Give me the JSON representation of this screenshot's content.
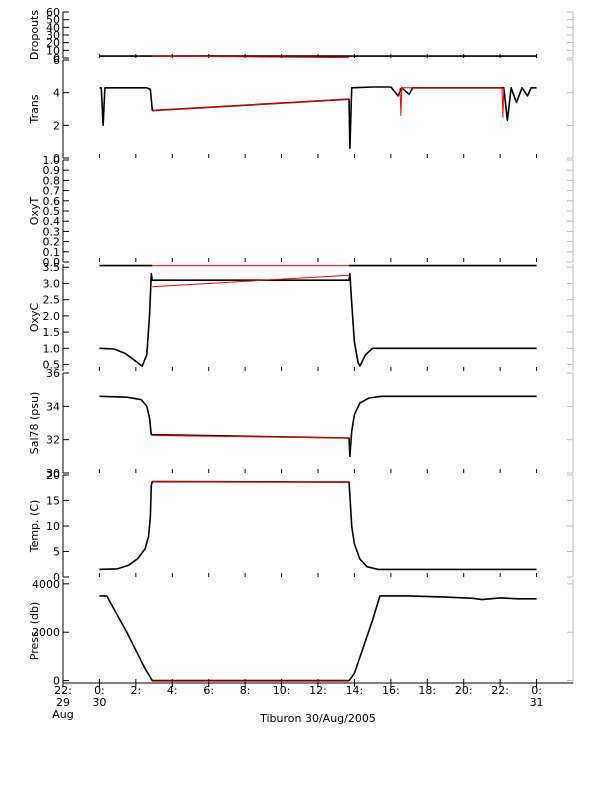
{
  "page": {
    "caption": "Tiburon 30/Aug/2005"
  },
  "chart_data": [
    {
      "type": "line",
      "title": "",
      "ylabel": "Dropouts",
      "ylim": [
        0,
        60
      ],
      "yticks": [
        0,
        10,
        20,
        30,
        40,
        50,
        60
      ],
      "series": [
        {
          "color": "#000000",
          "points": [
            [
              0,
              2.5
            ],
            [
              2.9,
              2.5
            ],
            [
              13.7,
              2.5
            ],
            [
              24,
              2.5
            ]
          ],
          "segments": [
            [
              0,
              2.9
            ],
            [
              13.7,
              24
            ]
          ]
        },
        {
          "color": "#ff0000",
          "points": [
            [
              2.9,
              2.5
            ],
            [
              13.7,
              0.5
            ]
          ]
        }
      ]
    },
    {
      "type": "line",
      "ylabel": "Trans",
      "ylim": [
        0,
        6
      ],
      "yticks": [
        0,
        2,
        4,
        6
      ],
      "series": [
        {
          "color": "#000000",
          "points": [
            [
              0,
              4.3
            ],
            [
              0.1,
              4.3
            ],
            [
              0.2,
              2.0
            ],
            [
              0.3,
              4.3
            ],
            [
              2.6,
              4.3
            ],
            [
              2.8,
              4.2
            ],
            [
              2.9,
              2.9
            ],
            [
              13.7,
              3.6
            ],
            [
              13.75,
              0.6
            ],
            [
              13.85,
              4.3
            ],
            [
              15,
              4.35
            ],
            [
              16,
              4.35
            ],
            [
              16.4,
              3.8
            ],
            [
              16.6,
              4.3
            ],
            [
              17,
              3.9
            ],
            [
              17.2,
              4.3
            ],
            [
              22.2,
              4.3
            ],
            [
              22.4,
              2.3
            ],
            [
              22.6,
              4.3
            ],
            [
              22.9,
              3.4
            ],
            [
              23.2,
              4.3
            ],
            [
              23.5,
              3.8
            ],
            [
              23.7,
              4.3
            ],
            [
              24,
              4.3
            ]
          ]
        },
        {
          "color": "#ff0000",
          "points": [
            [
              2.9,
              2.9
            ],
            [
              13.7,
              3.6
            ]
          ]
        },
        {
          "color": "#ff0000",
          "points": [
            [
              16.5,
              4.3
            ],
            [
              16.55,
              2.6
            ],
            [
              16.6,
              4.3
            ],
            [
              22.1,
              4.3
            ],
            [
              22.15,
              2.5
            ],
            [
              22.2,
              4.3
            ]
          ]
        }
      ]
    },
    {
      "type": "line",
      "ylabel": "OxyT",
      "ylim": [
        0,
        1.0
      ],
      "yticks": [
        0.0,
        0.1,
        0.2,
        0.3,
        0.4,
        0.5,
        0.6,
        0.7,
        0.8,
        0.9,
        1.0
      ],
      "ytick_labels": [
        "0.0",
        "0.1",
        "0.2",
        "0.3",
        "0.4",
        "0.5",
        "0.6",
        "0.7",
        "0.8",
        "0.9",
        "1.0"
      ],
      "series": []
    },
    {
      "type": "line",
      "ylabel": "OxyC",
      "ylim": [
        0.3,
        3.6
      ],
      "yticks": [
        0.5,
        1.0,
        1.5,
        2.0,
        2.5,
        3.0,
        3.5
      ],
      "ytick_labels": [
        "0.5",
        "1.0",
        "1.5",
        "2.0",
        "2.5",
        "3.0",
        "3.5"
      ],
      "series": [
        {
          "color": "#000000",
          "points": [
            [
              0,
              1.0
            ],
            [
              0.8,
              0.98
            ],
            [
              1.4,
              0.85
            ],
            [
              2.0,
              0.6
            ],
            [
              2.35,
              0.45
            ],
            [
              2.6,
              0.8
            ],
            [
              2.75,
              2.0
            ],
            [
              2.85,
              3.3
            ],
            [
              2.9,
              3.1
            ],
            [
              13.7,
              3.1
            ],
            [
              13.75,
              3.3
            ],
            [
              13.85,
              2.4
            ],
            [
              14.0,
              1.2
            ],
            [
              14.2,
              0.55
            ],
            [
              14.3,
              0.45
            ],
            [
              14.6,
              0.8
            ],
            [
              15,
              1.0
            ],
            [
              24,
              1.0
            ]
          ]
        },
        {
          "color": "#ff0000",
          "points": [
            [
              2.9,
              2.9
            ],
            [
              13.7,
              3.25
            ]
          ]
        },
        {
          "color": "#ff0000",
          "points": [
            [
              2.9,
              3.55
            ],
            [
              13.7,
              3.55
            ]
          ]
        },
        {
          "color": "#000000",
          "points": [
            [
              0,
              3.55
            ],
            [
              2.9,
              3.55
            ]
          ]
        },
        {
          "color": "#000000",
          "points": [
            [
              13.7,
              3.55
            ],
            [
              24,
              3.55
            ]
          ]
        }
      ]
    },
    {
      "type": "line",
      "ylabel": "Sal78 (psu)",
      "ylim": [
        30,
        36
      ],
      "yticks": [
        30,
        32,
        34,
        36
      ],
      "series": [
        {
          "color": "#000000",
          "points": [
            [
              0,
              34.6
            ],
            [
              1.5,
              34.55
            ],
            [
              2.3,
              34.4
            ],
            [
              2.6,
              34.0
            ],
            [
              2.75,
              33.3
            ],
            [
              2.85,
              32.3
            ],
            [
              2.9,
              32.3
            ],
            [
              13.7,
              32.1
            ],
            [
              13.75,
              31.0
            ],
            [
              13.85,
              32.5
            ],
            [
              14.0,
              33.5
            ],
            [
              14.3,
              34.2
            ],
            [
              14.8,
              34.5
            ],
            [
              15.5,
              34.6
            ],
            [
              24,
              34.6
            ]
          ]
        },
        {
          "color": "#ff0000",
          "points": [
            [
              2.9,
              32.25
            ],
            [
              13.7,
              32.1
            ]
          ]
        }
      ]
    },
    {
      "type": "line",
      "ylabel": "Temp. (C)",
      "ylim": [
        0,
        20
      ],
      "yticks": [
        0,
        5,
        10,
        15,
        20
      ],
      "series": [
        {
          "color": "#000000",
          "points": [
            [
              0,
              1.5
            ],
            [
              1.0,
              1.6
            ],
            [
              1.6,
              2.3
            ],
            [
              2.1,
              3.6
            ],
            [
              2.5,
              5.5
            ],
            [
              2.7,
              8.0
            ],
            [
              2.8,
              12.0
            ],
            [
              2.85,
              18.0
            ],
            [
              2.9,
              18.7
            ],
            [
              13.7,
              18.6
            ],
            [
              13.75,
              16.0
            ],
            [
              13.85,
              10.0
            ],
            [
              14.0,
              6.5
            ],
            [
              14.3,
              3.5
            ],
            [
              14.7,
              2.0
            ],
            [
              15.3,
              1.5
            ],
            [
              24,
              1.5
            ]
          ]
        },
        {
          "color": "#ff0000",
          "points": [
            [
              2.9,
              18.7
            ],
            [
              13.7,
              18.6
            ]
          ]
        }
      ]
    },
    {
      "type": "line",
      "ylabel": "Press. (db)",
      "xlabel": "",
      "ylim": [
        -100,
        4200
      ],
      "yticks": [
        0,
        2000,
        4000
      ],
      "series": [
        {
          "color": "#000000",
          "points": [
            [
              0,
              3500
            ],
            [
              0.4,
              3500
            ],
            [
              1.5,
              2000
            ],
            [
              2.5,
              500
            ],
            [
              2.9,
              0
            ],
            [
              13.7,
              0
            ],
            [
              14.0,
              300
            ],
            [
              15.0,
              2500
            ],
            [
              15.4,
              3500
            ],
            [
              17,
              3500
            ],
            [
              19,
              3450
            ],
            [
              20.5,
              3400
            ],
            [
              21.0,
              3350
            ],
            [
              22,
              3420
            ],
            [
              23,
              3380
            ],
            [
              24,
              3380
            ]
          ]
        },
        {
          "color": "#ff0000",
          "points": [
            [
              2.9,
              -30
            ],
            [
              13.7,
              -30
            ]
          ]
        }
      ]
    }
  ],
  "x_axis": {
    "xlim": [
      -2,
      26
    ],
    "ticks": [
      {
        "x": -2,
        "line1": "22:",
        "line2": "29",
        "line3": "Aug"
      },
      {
        "x": 0,
        "line1": "0:",
        "line2": "30",
        "line3": ""
      },
      {
        "x": 2,
        "line1": "2:",
        "line2": "",
        "line3": ""
      },
      {
        "x": 4,
        "line1": "4:",
        "line2": "",
        "line3": ""
      },
      {
        "x": 6,
        "line1": "6:",
        "line2": "",
        "line3": ""
      },
      {
        "x": 8,
        "line1": "8:",
        "line2": "",
        "line3": ""
      },
      {
        "x": 10,
        "line1": "10:",
        "line2": "",
        "line3": ""
      },
      {
        "x": 12,
        "line1": "12:",
        "line2": "",
        "line3": ""
      },
      {
        "x": 14,
        "line1": "14:",
        "line2": "",
        "line3": ""
      },
      {
        "x": 16,
        "line1": "16:",
        "line2": "",
        "line3": ""
      },
      {
        "x": 18,
        "line1": "18:",
        "line2": "",
        "line3": ""
      },
      {
        "x": 20,
        "line1": "20:",
        "line2": "",
        "line3": ""
      },
      {
        "x": 22,
        "line1": "22:",
        "line2": "",
        "line3": ""
      },
      {
        "x": 24,
        "line1": "0:",
        "line2": "31",
        "line3": ""
      }
    ]
  },
  "colors": {
    "data": "#000000",
    "gap": "#ff0000",
    "axis": "#000000",
    "frame": "#bbbbbb"
  }
}
